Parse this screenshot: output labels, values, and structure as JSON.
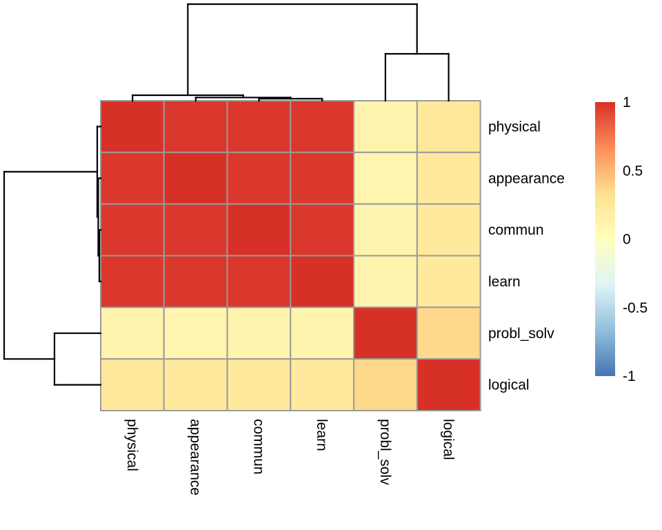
{
  "chart_data": {
    "type": "heatmap",
    "title": "",
    "description": "Clustered correlation matrix heatmap (pheatmap style) with row and column dendrograms and a color scale legend",
    "labels": [
      "physical",
      "appearance",
      "commun",
      "learn",
      "probl_solv",
      "logical"
    ],
    "matrix": [
      [
        1.0,
        0.97,
        0.97,
        0.97,
        0.13,
        0.25
      ],
      [
        0.97,
        1.0,
        0.97,
        0.97,
        0.11,
        0.24
      ],
      [
        0.97,
        0.97,
        1.0,
        0.97,
        0.12,
        0.24
      ],
      [
        0.97,
        0.97,
        0.97,
        1.0,
        0.12,
        0.24
      ],
      [
        0.13,
        0.11,
        0.12,
        0.12,
        1.0,
        0.36
      ],
      [
        0.25,
        0.24,
        0.24,
        0.24,
        0.36,
        1.0
      ]
    ],
    "scale": {
      "min": -1,
      "max": 1,
      "ticks": [
        1,
        0.5,
        0,
        -0.5,
        -1
      ],
      "tick_labels": [
        "1",
        "0.5",
        "0",
        "-0.5",
        "-1"
      ],
      "palette_top_to_bottom": [
        "#D73027",
        "#FC8D59",
        "#FEE090",
        "#FFFFBF",
        "#E0F3F8",
        "#91BFDB",
        "#4575B4"
      ],
      "legend_position": "right"
    },
    "grid": true,
    "grid_color": "#9A9A9A",
    "dendrogram_color": "#000000",
    "column_dendrogram_segments": [
      [
        375.6,
        146,
        375.6,
        143
      ],
      [
        467.2,
        146,
        467.2,
        143
      ],
      [
        375.6,
        143,
        467.2,
        143
      ],
      [
        421.4,
        143,
        421.4,
        141.3
      ],
      [
        283.9,
        146,
        283.9,
        141.3
      ],
      [
        283.9,
        141.3,
        421.4,
        141.3
      ],
      [
        352.7,
        141.3,
        352.7,
        138
      ],
      [
        192.2,
        146,
        192.2,
        138
      ],
      [
        192.2,
        138,
        352.7,
        138
      ],
      [
        272.4,
        138,
        272.4,
        6
      ],
      [
        558.9,
        146,
        558.9,
        78
      ],
      [
        650.6,
        146,
        650.6,
        78
      ],
      [
        558.9,
        78,
        650.6,
        78
      ],
      [
        604.7,
        78,
        604.7,
        6
      ],
      [
        272.4,
        6,
        604.7,
        6
      ]
    ],
    "row_dendrogram_segments": [
      [
        146,
        333.1,
        144,
        333.1
      ],
      [
        146,
        407.9,
        144,
        407.9
      ],
      [
        144,
        333.1,
        144,
        407.9
      ],
      [
        144,
        370.5,
        142.5,
        370.5
      ],
      [
        146,
        258.3,
        142.5,
        258.3
      ],
      [
        142.5,
        258.3,
        142.5,
        370.5
      ],
      [
        142.5,
        314.4,
        141,
        314.4
      ],
      [
        146,
        183.4,
        141,
        183.4
      ],
      [
        141,
        183.4,
        141,
        314.4
      ],
      [
        141,
        248.9,
        6,
        248.9
      ],
      [
        146,
        482.8,
        79,
        482.8
      ],
      [
        146,
        557.6,
        79,
        557.6
      ],
      [
        79,
        482.8,
        79,
        557.6
      ],
      [
        79,
        520.2,
        6,
        520.2
      ],
      [
        6,
        248.9,
        6,
        520.2
      ]
    ]
  }
}
